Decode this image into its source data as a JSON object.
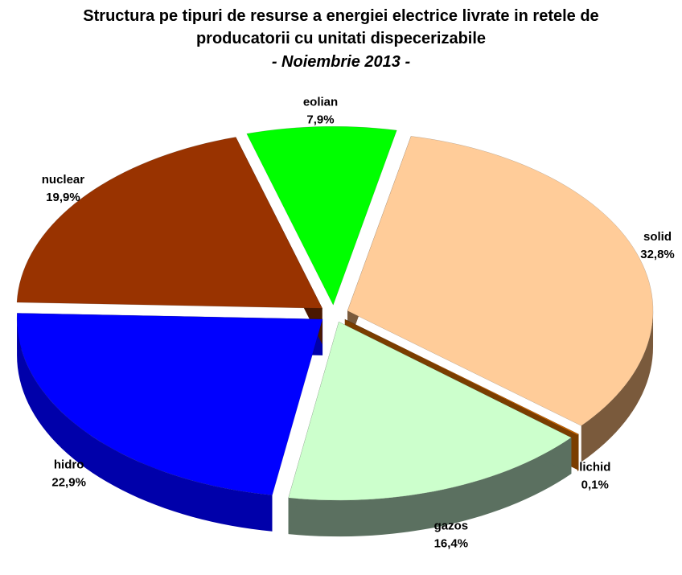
{
  "chart_data": {
    "type": "pie",
    "title": "Structura pe tipuri de resurse a energiei electrice livrate in retele de producatorii cu unitati dispecerizabile",
    "subtitle": "- Noiembrie 2013 -",
    "categories": [
      "solid",
      "lichid",
      "gazos",
      "hidro",
      "nuclear",
      "eolian"
    ],
    "values": [
      32.8,
      0.1,
      16.4,
      22.9,
      19.9,
      7.9
    ],
    "value_labels": [
      "32,8%",
      "0,1%",
      "16,4%",
      "22,9%",
      "19,9%",
      "7,9%"
    ],
    "colors": [
      "#FFCC99",
      "#CC6600",
      "#CCFFCC",
      "#0000FF",
      "#993300",
      "#00FF00"
    ],
    "side_colors": [
      "#7A5A3C",
      "#7A3D00",
      "#5B7060",
      "#0000AA",
      "#4A1800",
      "#00AA00"
    ]
  }
}
